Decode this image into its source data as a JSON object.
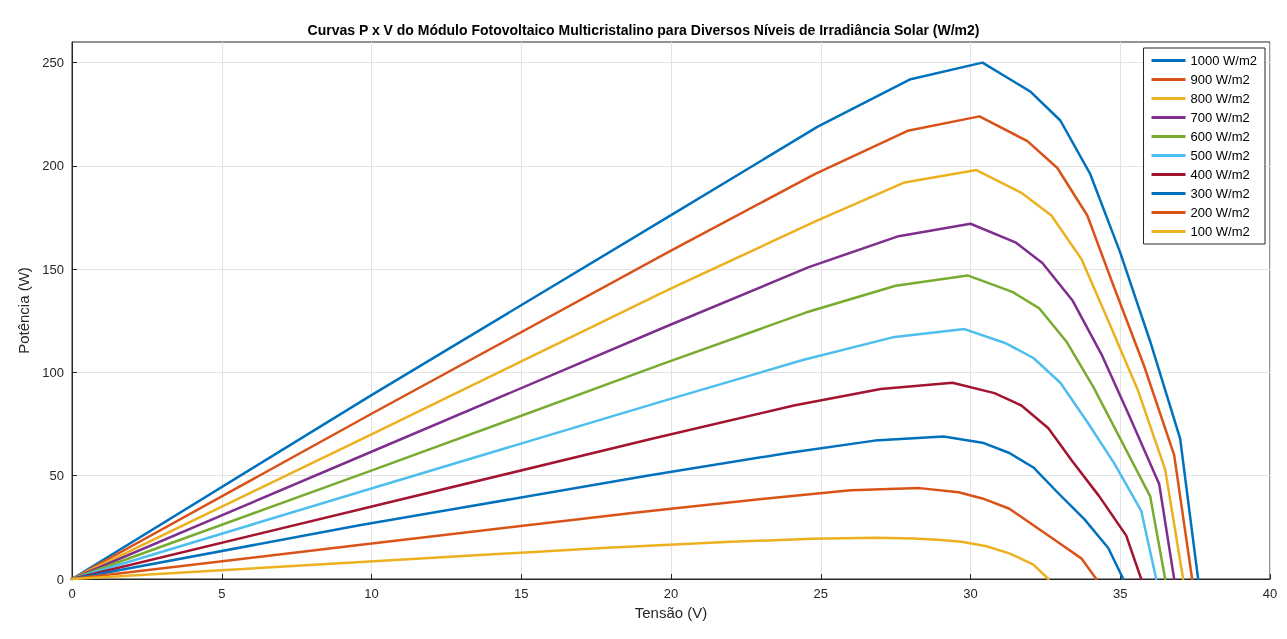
{
  "chart_data": {
    "type": "line",
    "title": "Curvas P x V do Módulo Fotovoltaico Multicristalino para Diversos Níveis de Irradiância Solar (W/m2)",
    "xlabel": "Tensão (V)",
    "ylabel": "Potência (W)",
    "xlim": [
      0,
      40
    ],
    "xticks": [
      0,
      5,
      10,
      15,
      20,
      25,
      30,
      35,
      40
    ],
    "ylim": [
      0,
      260
    ],
    "yticks": [
      0,
      50,
      100,
      150,
      200,
      250
    ],
    "grid": true,
    "legend": "top right",
    "marker": "none",
    "line_style": "solid",
    "series": [
      {
        "name": "1000 W/m2",
        "color": "#0072bd",
        "x": [
          0,
          10.0,
          20.1,
          24.9,
          28.0,
          30.4,
          32.0,
          33.0,
          34.0,
          35.0,
          36.0,
          37.0,
          37.6
        ],
        "values": [
          0,
          89,
          177,
          219,
          242,
          250,
          236,
          222,
          196,
          158,
          115,
          68,
          0
        ]
      },
      {
        "name": "900 W/m2",
        "color": "#d95319",
        "x": [
          0,
          10.0,
          20.0,
          24.8,
          27.9,
          30.3,
          31.9,
          32.9,
          33.9,
          34.8,
          35.8,
          36.8,
          37.4
        ],
        "values": [
          0,
          80,
          159,
          196,
          217,
          224,
          212,
          199,
          176,
          141,
          103,
          60,
          0
        ]
      },
      {
        "name": "800 W/m2",
        "color": "#edb120",
        "x": [
          0,
          10.0,
          19.9,
          24.8,
          27.8,
          30.2,
          31.7,
          32.7,
          33.7,
          34.6,
          35.6,
          36.5,
          37.1
        ],
        "values": [
          0,
          70,
          140,
          173,
          192,
          198,
          187,
          176,
          155,
          125,
          91,
          53,
          0
        ]
      },
      {
        "name": "700 W/m2",
        "color": "#7e2f8e",
        "x": [
          0,
          9.9,
          19.8,
          24.6,
          27.6,
          30.0,
          31.5,
          32.4,
          33.4,
          34.4,
          35.3,
          36.3,
          36.8
        ],
        "values": [
          0,
          61,
          122,
          151,
          166,
          172,
          163,
          153,
          135,
          108,
          79,
          46,
          0
        ]
      },
      {
        "name": "600 W/m2",
        "color": "#77ac30",
        "x": [
          0,
          9.9,
          19.7,
          24.5,
          27.5,
          29.9,
          31.4,
          32.3,
          33.2,
          34.1,
          35.0,
          36.0,
          36.5
        ],
        "values": [
          0,
          52,
          104,
          129,
          142,
          147,
          139,
          131,
          115,
          93,
          68,
          40,
          0
        ]
      },
      {
        "name": "500 W/m2",
        "color": "#4dbeee",
        "x": [
          0,
          9.8,
          19.7,
          24.4,
          27.4,
          29.8,
          31.2,
          32.1,
          33.0,
          33.9,
          34.8,
          35.7,
          36.2
        ],
        "values": [
          0,
          43,
          86,
          106,
          117,
          121,
          114,
          107,
          95,
          76,
          56,
          33,
          0
        ]
      },
      {
        "name": "400 W/m2",
        "color": "#a2142f",
        "x": [
          0,
          9.7,
          19.4,
          24.1,
          27.0,
          29.4,
          30.8,
          31.7,
          32.6,
          33.4,
          34.3,
          35.2,
          35.7
        ],
        "values": [
          0,
          34,
          68,
          84,
          92,
          95,
          90,
          84,
          73,
          57,
          40,
          21,
          0
        ]
      },
      {
        "name": "300 W/m2",
        "color": "#0072bd",
        "x": [
          0,
          9.6,
          19.2,
          23.9,
          26.8,
          29.1,
          30.4,
          31.3,
          32.1,
          32.9,
          33.8,
          34.6,
          35.1
        ],
        "values": [
          0,
          26,
          50,
          61,
          67,
          69,
          66,
          61,
          54,
          42,
          29,
          15,
          0
        ]
      },
      {
        "name": "200 W/m2",
        "color": "#d95319",
        "x": [
          0,
          9.3,
          18.7,
          23.2,
          26.0,
          28.3,
          29.6,
          30.4,
          31.3,
          32.1,
          32.9,
          33.7,
          34.2
        ],
        "values": [
          0,
          16,
          32,
          39,
          43,
          44,
          42,
          39,
          34,
          26,
          18,
          10,
          0
        ]
      },
      {
        "name": "100 W/m2",
        "color": "#edb120",
        "x": [
          0,
          8.8,
          17.7,
          22.0,
          24.7,
          26.8,
          28.1,
          28.9,
          29.7,
          30.5,
          31.3,
          32.1,
          32.6
        ],
        "values": [
          0,
          7.5,
          15,
          18,
          19.5,
          20,
          19.6,
          19,
          18,
          16,
          12.4,
          7,
          0
        ]
      }
    ]
  }
}
